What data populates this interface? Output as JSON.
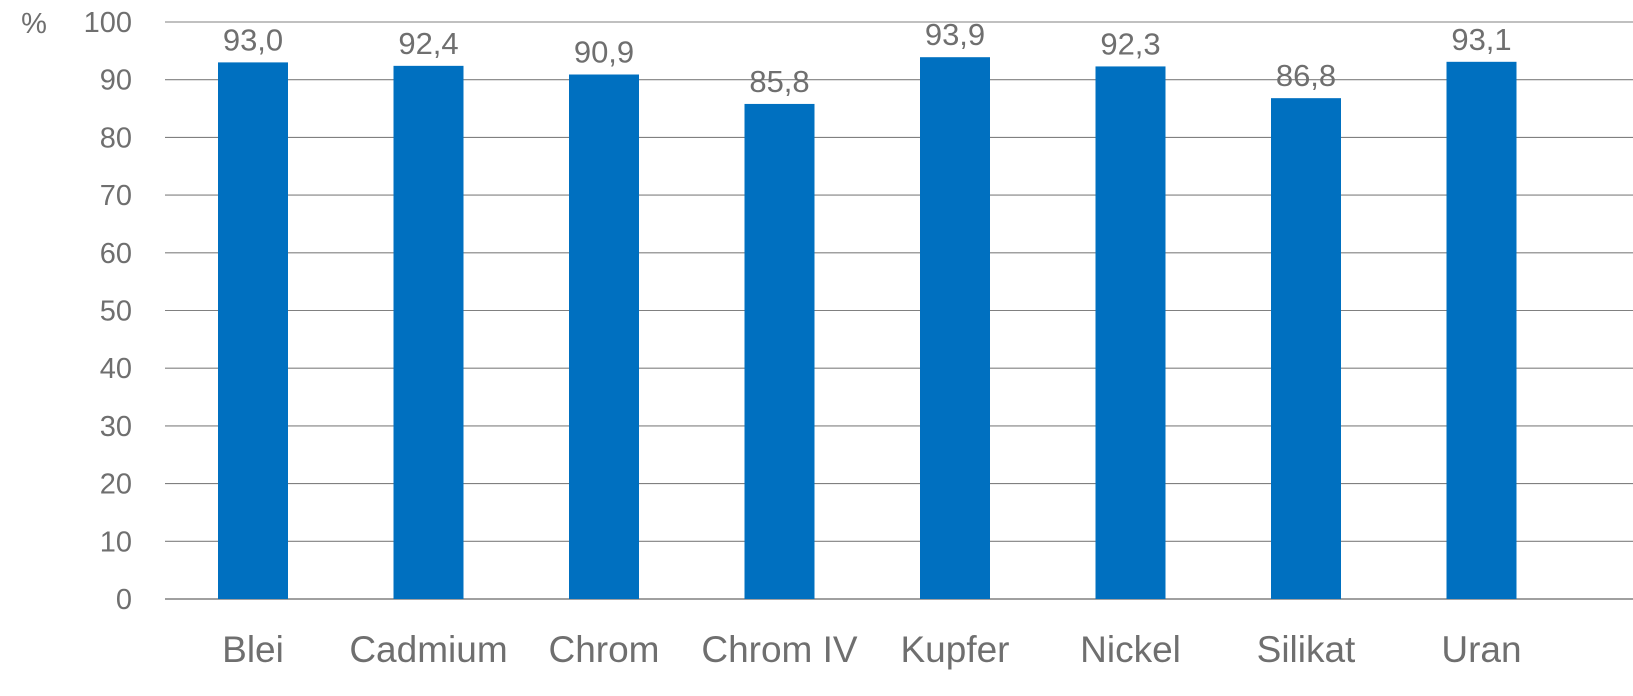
{
  "chart_data": {
    "type": "bar",
    "title": "",
    "xlabel": "",
    "ylabel": "%",
    "categories": [
      "Blei",
      "Cadmium",
      "Chrom",
      "Chrom IV",
      "Kupfer",
      "Nickel",
      "Silikat",
      "Uran"
    ],
    "values": [
      93.0,
      92.4,
      90.9,
      85.8,
      93.9,
      92.3,
      86.8,
      93.1
    ],
    "data_labels": [
      "93,0",
      "92,4",
      "90,9",
      "85,8",
      "93,9",
      "92,3",
      "86,8",
      "93,1"
    ],
    "ylim": [
      0,
      100
    ],
    "yticks": [
      0,
      10,
      20,
      30,
      40,
      50,
      60,
      70,
      80,
      90,
      100
    ],
    "grid": true,
    "legend": "none",
    "bar_color": "#0070C0",
    "grid_color": "#808080",
    "text_color": "#6f6f6f"
  }
}
